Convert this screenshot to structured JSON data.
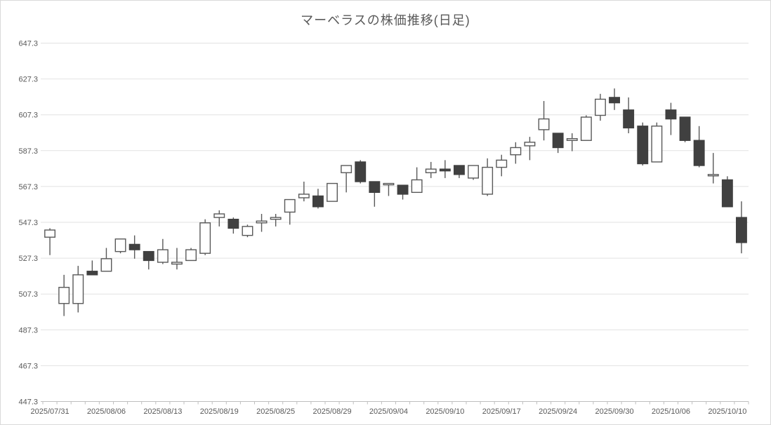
{
  "chart_data": {
    "type": "candlestick",
    "title": "マーベラスの株価推移(日足)",
    "x_axis": {
      "label_every_n_points": 4,
      "tick_labels": [
        "2025/07/31",
        "2025/08/06",
        "2025/08/13",
        "2025/08/19",
        "2025/08/25",
        "2025/08/29",
        "2025/09/04",
        "2025/09/10",
        "2025/09/17",
        "2025/09/24",
        "2025/09/30",
        "2025/10/06",
        "2025/10/10"
      ]
    },
    "y_axis": {
      "min": 447.3,
      "max": 647.3,
      "step": 20,
      "tick_labels": [
        "447.3",
        "467.3",
        "487.3",
        "507.3",
        "527.3",
        "547.3",
        "567.3",
        "587.3",
        "607.3",
        "627.3",
        "647.3"
      ]
    },
    "layout": {
      "grid": true,
      "legend": "none",
      "up_candle_style": "hollow",
      "down_candle_style": "filled"
    },
    "colors": {
      "up_fill": "#ffffff",
      "up_border": "#595959",
      "down_fill": "#404040",
      "down_border": "#404040",
      "wick": "#595959",
      "grid": "#e2e2e2",
      "axis": "#bfbfbf",
      "text": "#595959",
      "frame_border": "#d9d9d9"
    },
    "series": [
      {
        "name": "日足ローソク足",
        "points": [
          {
            "date": "2025/07/31",
            "open": 539,
            "high": 544,
            "low": 529,
            "close": 543
          },
          {
            "date": "2025/08/01",
            "open": 502,
            "high": 518,
            "low": 495,
            "close": 511
          },
          {
            "date": "2025/08/04",
            "open": 502,
            "high": 523,
            "low": 497,
            "close": 518
          },
          {
            "date": "2025/08/05",
            "open": 520,
            "high": 526,
            "low": 518,
            "close": 518
          },
          {
            "date": "2025/08/06",
            "open": 520,
            "high": 533,
            "low": 520,
            "close": 527
          },
          {
            "date": "2025/08/07",
            "open": 531,
            "high": 538,
            "low": 530,
            "close": 538
          },
          {
            "date": "2025/08/08",
            "open": 535,
            "high": 540,
            "low": 527,
            "close": 532
          },
          {
            "date": "2025/08/12",
            "open": 531,
            "high": 531,
            "low": 521,
            "close": 526
          },
          {
            "date": "2025/08/13",
            "open": 525,
            "high": 538,
            "low": 524,
            "close": 532
          },
          {
            "date": "2025/08/14",
            "open": 524,
            "high": 533,
            "low": 521,
            "close": 525
          },
          {
            "date": "2025/08/15",
            "open": 526,
            "high": 533,
            "low": 526,
            "close": 532
          },
          {
            "date": "2025/08/18",
            "open": 530,
            "high": 549,
            "low": 529,
            "close": 547
          },
          {
            "date": "2025/08/19",
            "open": 550,
            "high": 554,
            "low": 545,
            "close": 552
          },
          {
            "date": "2025/08/20",
            "open": 549,
            "high": 550,
            "low": 541,
            "close": 544
          },
          {
            "date": "2025/08/21",
            "open": 540,
            "high": 546,
            "low": 539,
            "close": 545
          },
          {
            "date": "2025/08/22",
            "open": 547,
            "high": 552,
            "low": 542,
            "close": 548
          },
          {
            "date": "2025/08/25",
            "open": 549,
            "high": 552,
            "low": 545,
            "close": 550
          },
          {
            "date": "2025/08/26",
            "open": 553,
            "high": 560,
            "low": 546,
            "close": 560
          },
          {
            "date": "2025/08/27",
            "open": 561,
            "high": 570,
            "low": 559,
            "close": 563
          },
          {
            "date": "2025/08/28",
            "open": 562,
            "high": 566,
            "low": 555,
            "close": 556
          },
          {
            "date": "2025/08/29",
            "open": 559,
            "high": 569,
            "low": 559,
            "close": 569
          },
          {
            "date": "2025/09/01",
            "open": 575,
            "high": 579,
            "low": 564,
            "close": 579
          },
          {
            "date": "2025/09/02",
            "open": 581,
            "high": 582,
            "low": 569,
            "close": 570
          },
          {
            "date": "2025/09/03",
            "open": 570,
            "high": 570,
            "low": 556,
            "close": 564
          },
          {
            "date": "2025/09/04",
            "open": 569,
            "high": 569,
            "low": 562,
            "close": 569
          },
          {
            "date": "2025/09/05",
            "open": 568,
            "high": 568,
            "low": 560,
            "close": 563
          },
          {
            "date": "2025/09/08",
            "open": 564,
            "high": 578,
            "low": 564,
            "close": 571
          },
          {
            "date": "2025/09/09",
            "open": 575,
            "high": 581,
            "low": 572,
            "close": 577
          },
          {
            "date": "2025/09/10",
            "open": 577,
            "high": 582,
            "low": 572,
            "close": 576
          },
          {
            "date": "2025/09/11",
            "open": 579,
            "high": 579,
            "low": 572,
            "close": 574
          },
          {
            "date": "2025/09/12",
            "open": 572,
            "high": 579,
            "low": 571,
            "close": 579
          },
          {
            "date": "2025/09/16",
            "open": 563,
            "high": 583,
            "low": 562,
            "close": 578
          },
          {
            "date": "2025/09/17",
            "open": 578,
            "high": 585,
            "low": 573,
            "close": 582
          },
          {
            "date": "2025/09/18",
            "open": 585,
            "high": 592,
            "low": 580,
            "close": 589
          },
          {
            "date": "2025/09/19",
            "open": 590,
            "high": 595,
            "low": 582,
            "close": 592
          },
          {
            "date": "2025/09/22",
            "open": 599,
            "high": 615,
            "low": 593,
            "close": 605
          },
          {
            "date": "2025/09/24",
            "open": 597,
            "high": 597,
            "low": 586,
            "close": 589
          },
          {
            "date": "2025/09/25",
            "open": 593,
            "high": 597,
            "low": 587,
            "close": 594
          },
          {
            "date": "2025/09/26",
            "open": 593,
            "high": 607,
            "low": 593,
            "close": 606
          },
          {
            "date": "2025/09/29",
            "open": 607,
            "high": 619,
            "low": 604,
            "close": 616
          },
          {
            "date": "2025/09/30",
            "open": 617,
            "high": 622,
            "low": 610,
            "close": 614
          },
          {
            "date": "2025/10/01",
            "open": 610,
            "high": 617,
            "low": 597,
            "close": 600
          },
          {
            "date": "2025/10/02",
            "open": 601,
            "high": 603,
            "low": 579,
            "close": 580
          },
          {
            "date": "2025/10/03",
            "open": 581,
            "high": 603,
            "low": 581,
            "close": 601
          },
          {
            "date": "2025/10/06",
            "open": 610,
            "high": 614,
            "low": 596,
            "close": 605
          },
          {
            "date": "2025/10/07",
            "open": 606,
            "high": 606,
            "low": 592,
            "close": 593
          },
          {
            "date": "2025/10/08",
            "open": 593,
            "high": 601,
            "low": 578,
            "close": 579
          },
          {
            "date": "2025/10/09",
            "open": 574,
            "high": 586,
            "low": 569,
            "close": 574
          },
          {
            "date": "2025/10/10",
            "open": 571,
            "high": 573,
            "low": 556,
            "close": 556
          },
          {
            "date": "2025/10/14",
            "open": 550,
            "high": 559,
            "low": 530,
            "close": 536
          }
        ]
      }
    ]
  }
}
